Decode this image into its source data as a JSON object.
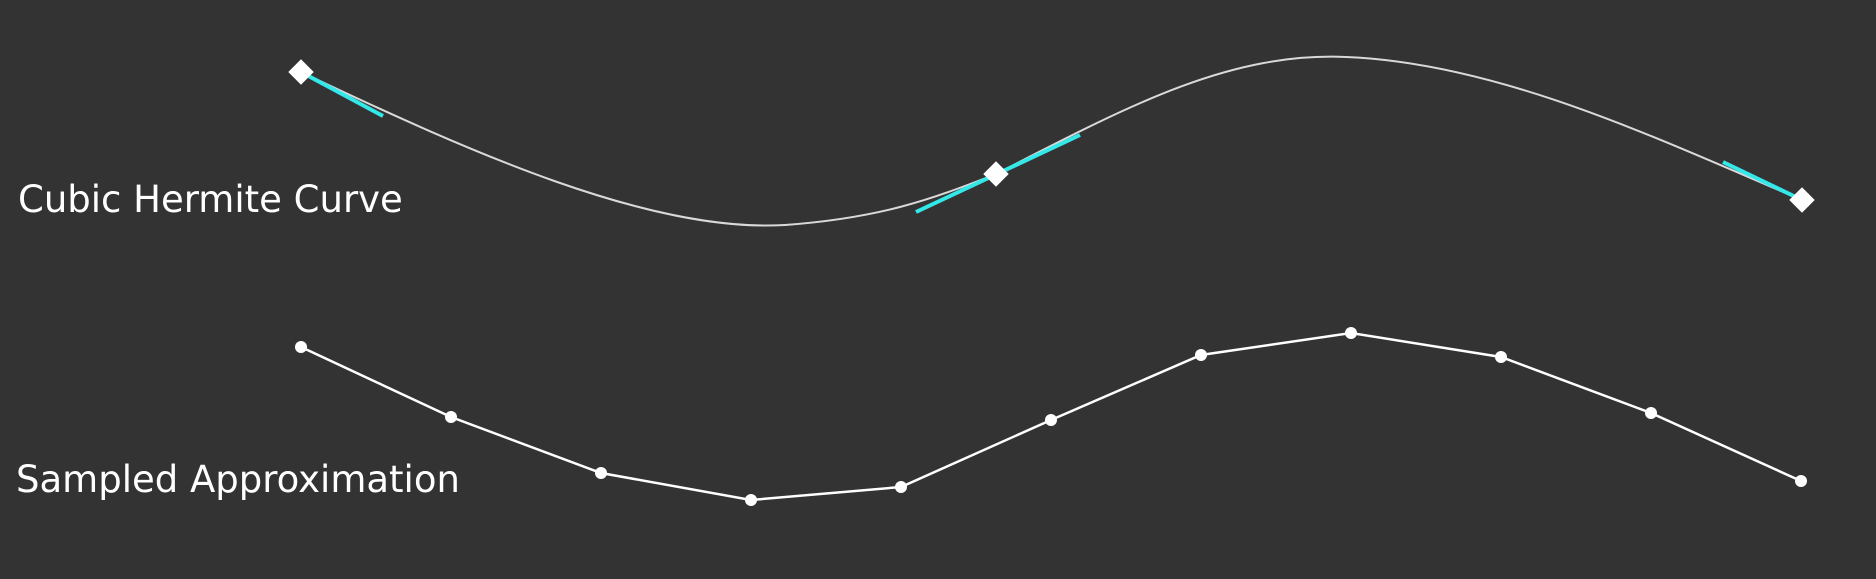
{
  "labels": {
    "hermite": "Cubic Hermite Curve",
    "sampled": "Sampled Approximation"
  },
  "colors": {
    "background": "#333333",
    "curve": "#d9d9d9",
    "tangent": "#33e8e8",
    "marker": "#ffffff",
    "polyline": "#ffffff"
  },
  "control_point_count": 3,
  "sample_count": 11
}
